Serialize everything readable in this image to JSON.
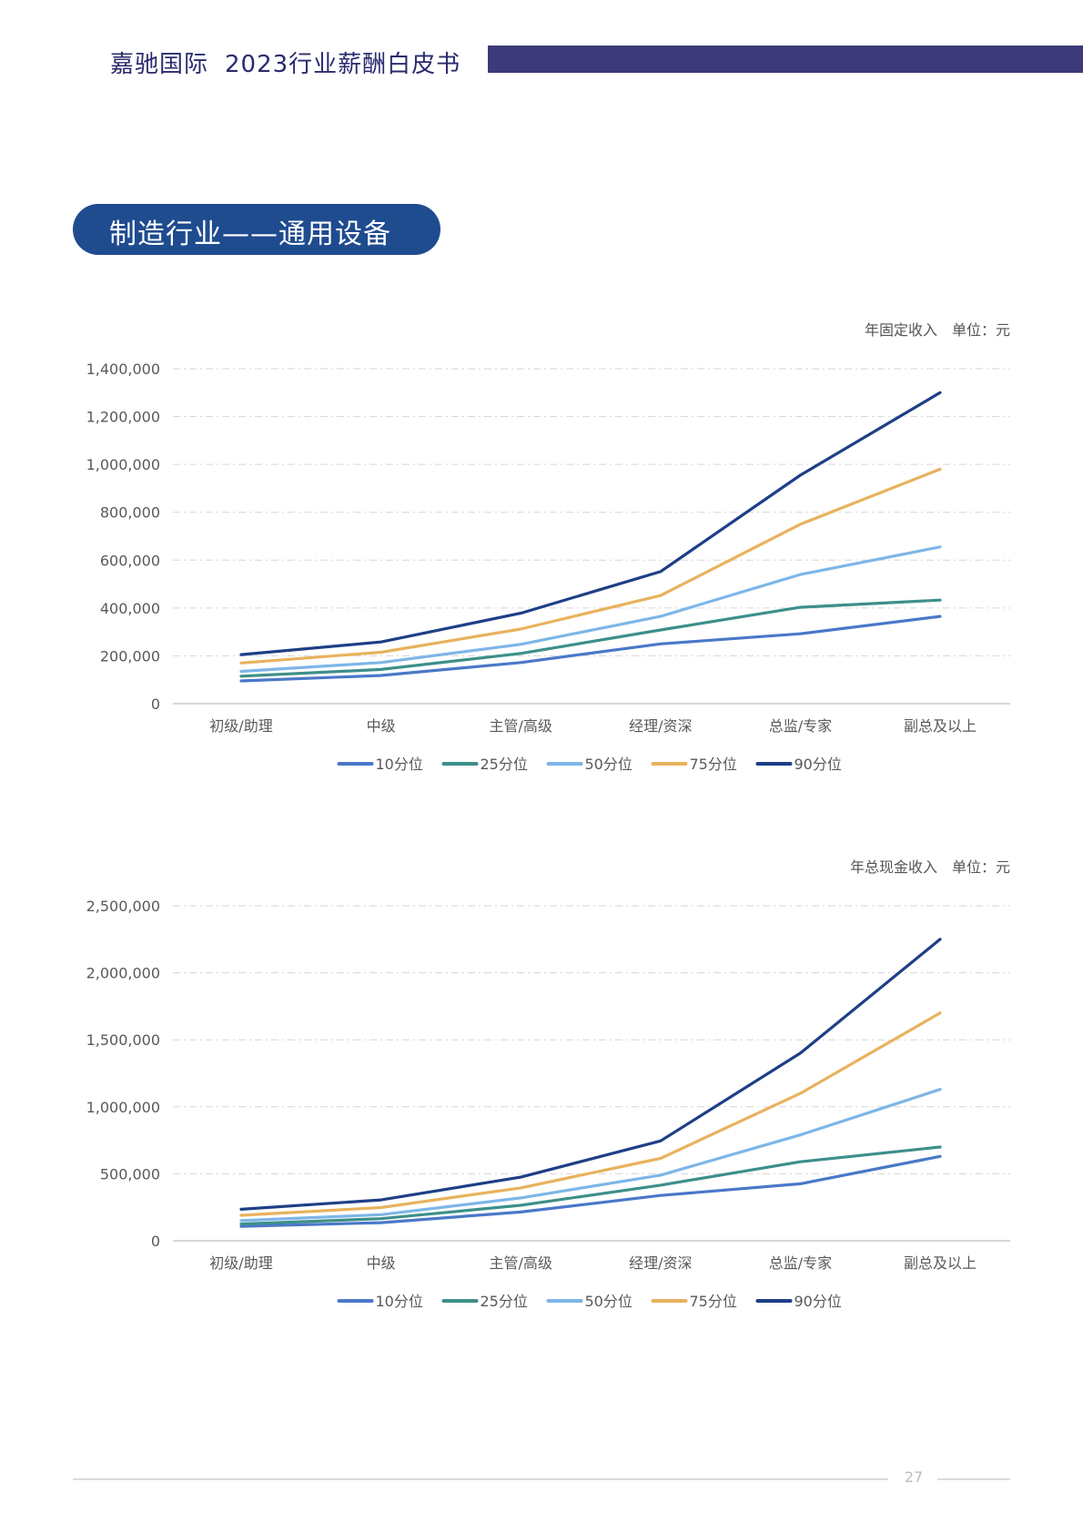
{
  "header": {
    "brand": "嘉驰国际",
    "title": "2023行业薪酬白皮书"
  },
  "section": {
    "title": "制造行业——通用设备"
  },
  "colors": {
    "header_bar": "#3c3a78",
    "pill": "#1f4b8f",
    "p10": "#4a78c8",
    "p25": "#3d8f8a",
    "p50": "#7db6e8",
    "p75": "#e8b25d",
    "p90": "#1e3f86"
  },
  "chart_data": [
    {
      "type": "line",
      "title": "",
      "unit_note": "年固定收入　单位：元",
      "xlabel": "",
      "ylabel": "",
      "categories": [
        "初级/助理",
        "中级",
        "主管/高级",
        "经理/资深",
        "总监/专家",
        "副总及以上"
      ],
      "ylim": [
        0,
        1400000
      ],
      "yticks": [
        0,
        200000,
        400000,
        600000,
        800000,
        1000000,
        1200000,
        1400000
      ],
      "ytick_labels": [
        "0",
        "200,000",
        "400,000",
        "600,000",
        "800,000",
        "1,000,000",
        "1,200,000",
        "1,400,000"
      ],
      "grid": true,
      "legend_position": "bottom",
      "series": [
        {
          "name": "10分位",
          "color": "#4a78c8",
          "values": [
            95000,
            118000,
            172000,
            250000,
            292000,
            365000
          ]
        },
        {
          "name": "25分位",
          "color": "#3d8f8a",
          "values": [
            115000,
            143000,
            210000,
            308000,
            403000,
            433000
          ]
        },
        {
          "name": "50分位",
          "color": "#7db6e8",
          "values": [
            135000,
            172000,
            248000,
            365000,
            540000,
            655000
          ]
        },
        {
          "name": "75分位",
          "color": "#e8b25d",
          "values": [
            170000,
            215000,
            312000,
            452000,
            750000,
            980000
          ]
        },
        {
          "name": "90分位",
          "color": "#1e3f86",
          "values": [
            205000,
            258000,
            378000,
            552000,
            955000,
            1300000
          ]
        }
      ]
    },
    {
      "type": "line",
      "title": "",
      "unit_note": "年总现金收入　单位：元",
      "xlabel": "",
      "ylabel": "",
      "categories": [
        "初级/助理",
        "中级",
        "主管/高级",
        "经理/资深",
        "总监/专家",
        "副总及以上"
      ],
      "ylim": [
        0,
        2500000
      ],
      "yticks": [
        0,
        500000,
        1000000,
        1500000,
        2000000,
        2500000
      ],
      "ytick_labels": [
        "0",
        "500,000",
        "1,000,000",
        "1,500,000",
        "2,000,000",
        "2,500,000"
      ],
      "grid": true,
      "legend_position": "bottom",
      "series": [
        {
          "name": "10分位",
          "color": "#4a78c8",
          "values": [
            108000,
            135000,
            215000,
            338000,
            425000,
            630000
          ]
        },
        {
          "name": "25分位",
          "color": "#3d8f8a",
          "values": [
            125000,
            165000,
            265000,
            415000,
            590000,
            700000
          ]
        },
        {
          "name": "50分位",
          "color": "#7db6e8",
          "values": [
            150000,
            195000,
            320000,
            490000,
            790000,
            1130000
          ]
        },
        {
          "name": "75分位",
          "color": "#e8b25d",
          "values": [
            190000,
            248000,
            395000,
            615000,
            1100000,
            1700000
          ]
        },
        {
          "name": "90分位",
          "color": "#1e3f86",
          "values": [
            235000,
            305000,
            475000,
            745000,
            1400000,
            2250000
          ]
        }
      ]
    }
  ],
  "footer": {
    "page_number": "27"
  }
}
